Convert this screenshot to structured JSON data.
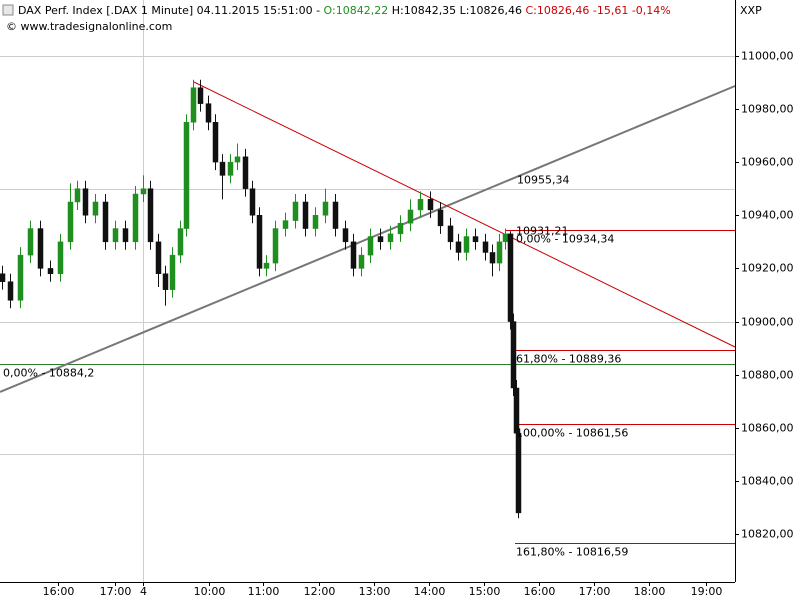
{
  "header": {
    "instrument": "DAX Perf. Index [.DAX  1 Minute] 04.11.2015 15:51:00 -",
    "open": "O:10842,22",
    "high_low": "H:10842,35 L:10826,46",
    "close": "C:10826,46 -15,61 -0,14%",
    "source": "© www.tradesignalonline.com",
    "axis_name": "XXP"
  },
  "chart_data": {
    "type": "candlestick",
    "x": [
      2,
      10,
      20,
      30,
      40,
      50,
      60,
      70,
      77,
      85,
      95,
      105,
      115,
      125,
      135,
      143,
      150,
      158,
      165,
      172,
      180,
      186,
      193,
      200,
      208,
      215,
      222,
      230,
      237,
      245,
      252,
      259,
      266,
      275,
      285,
      295,
      305,
      315,
      325,
      335,
      345,
      353,
      361,
      370,
      380,
      390,
      400,
      410,
      420,
      430,
      440,
      450,
      458,
      466,
      475,
      485,
      492,
      499,
      505,
      510,
      513,
      516,
      518
    ],
    "open": [
      10918,
      10915,
      10908,
      10925,
      10935,
      10920,
      10918,
      10930,
      10945,
      10950,
      10940,
      10945,
      10930,
      10935,
      10930,
      10948,
      10950,
      10930,
      10918,
      10912,
      10925,
      10935,
      10975,
      10988,
      10982,
      10975,
      10960,
      10955,
      10960,
      10962,
      10950,
      10940,
      10920,
      10922,
      10935,
      10938,
      10945,
      10935,
      10940,
      10945,
      10935,
      10930,
      10920,
      10925,
      10932,
      10930,
      10933,
      10937,
      10942,
      10946,
      10942,
      10936,
      10930,
      10926,
      10932,
      10930,
      10926,
      10922,
      10930,
      10933,
      10900,
      10875,
      10858
    ],
    "high": [
      10921,
      10918,
      10928,
      10938,
      10938,
      10923,
      10933,
      10952,
      10953,
      10953,
      10948,
      10948,
      10938,
      10938,
      10951,
      10955,
      10953,
      10933,
      10921,
      10928,
      10938,
      10978,
      10991,
      10991,
      10985,
      10978,
      10963,
      10963,
      10967,
      10965,
      10953,
      10943,
      10925,
      10938,
      10941,
      10948,
      10948,
      10943,
      10950,
      10948,
      10938,
      10933,
      10928,
      10935,
      10935,
      10936,
      10940,
      10946,
      10949,
      10949,
      10945,
      10939,
      10933,
      10935,
      10935,
      10933,
      10929,
      10933,
      10935,
      10934,
      10903,
      10878,
      10861
    ],
    "low": [
      10912,
      10905,
      10905,
      10922,
      10917,
      10915,
      10915,
      10927,
      10942,
      10937,
      10937,
      10927,
      10927,
      10927,
      10927,
      10945,
      10927,
      10913,
      10906,
      10909,
      10922,
      10932,
      10972,
      10979,
      10972,
      10957,
      10946,
      10952,
      10957,
      10947,
      10937,
      10917,
      10917,
      10919,
      10932,
      10935,
      10932,
      10932,
      10937,
      10932,
      10927,
      10917,
      10917,
      10922,
      10927,
      10927,
      10930,
      10934,
      10939,
      10939,
      10933,
      10927,
      10923,
      10923,
      10927,
      10923,
      10917,
      10919,
      10927,
      10897,
      10872,
      10855,
      10826
    ],
    "close": [
      10915,
      10908,
      10925,
      10935,
      10920,
      10918,
      10930,
      10945,
      10950,
      10940,
      10945,
      10930,
      10935,
      10930,
      10948,
      10950,
      10930,
      10918,
      10912,
      10925,
      10935,
      10975,
      10988,
      10982,
      10975,
      10960,
      10955,
      10960,
      10962,
      10950,
      10940,
      10920,
      10922,
      10935,
      10938,
      10945,
      10935,
      10940,
      10945,
      10935,
      10930,
      10920,
      10925,
      10932,
      10930,
      10933,
      10937,
      10942,
      10946,
      10942,
      10936,
      10930,
      10926,
      10932,
      10930,
      10926,
      10922,
      10930,
      10933,
      10900,
      10875,
      10858,
      10828
    ],
    "up_color": "#1f8f1f",
    "down_color": "#111111",
    "xlim": [
      0,
      735
    ],
    "xticks": [
      {
        "value": 58,
        "label": "16:00"
      },
      {
        "value": 115,
        "label": "17:00"
      },
      {
        "value": 143,
        "label": "4"
      },
      {
        "value": 209,
        "label": "10:00"
      },
      {
        "value": 263,
        "label": "11:00"
      },
      {
        "value": 319,
        "label": "12:00"
      },
      {
        "value": 374,
        "label": "13:00"
      },
      {
        "value": 429,
        "label": "14:00"
      },
      {
        "value": 484,
        "label": "15:00"
      },
      {
        "value": 539,
        "label": "16:00"
      },
      {
        "value": 594,
        "label": "17:00"
      },
      {
        "value": 649,
        "label": "18:00"
      },
      {
        "value": 706,
        "label": "19:00"
      }
    ],
    "ylim": [
      10802,
      11021
    ],
    "yticks": [
      {
        "value": 10820,
        "label": "10820,00"
      },
      {
        "value": 10840,
        "label": "10840,00"
      },
      {
        "value": 10860,
        "label": "10860,00"
      },
      {
        "value": 10880,
        "label": "10880,00"
      },
      {
        "value": 10900,
        "label": "10900,00"
      },
      {
        "value": 10920,
        "label": "10920,00"
      },
      {
        "value": 10940,
        "label": "10940,00"
      },
      {
        "value": 10960,
        "label": "10960,00"
      },
      {
        "value": 10980,
        "label": "10980,00"
      },
      {
        "value": 11000,
        "label": "11000,00"
      }
    ],
    "ygrid": [
      10850,
      10900,
      10950,
      11000
    ],
    "xgrid": [
      143
    ],
    "grid_color": "#c8d0c8",
    "levels": [
      {
        "value": 10934.34,
        "label": "0,00% - 10934,34"
      },
      {
        "value": 10889.36,
        "label": "61,80% - 10889,36"
      },
      {
        "value": 10861.56,
        "label": "100,00% - 10861,56"
      },
      {
        "value": 10816.59,
        "label": "161,80% - 10816,59"
      }
    ],
    "level_color": "#cc0000",
    "support": {
      "value": 10884.2,
      "label": "0,00% - 10884,2",
      "color": "#2e7d2e"
    },
    "trend_label": {
      "value": 10955.34,
      "label": "10955,34",
      "color": "#808080"
    },
    "high_label": {
      "value": 10931.21,
      "label": "10931,21"
    }
  }
}
